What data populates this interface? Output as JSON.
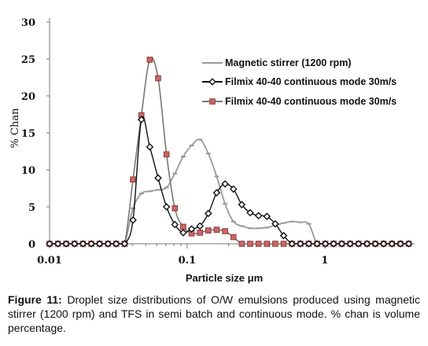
{
  "chart_data": {
    "type": "line",
    "x_scale": "log",
    "xlim": [
      0.01,
      4.5
    ],
    "ylim": [
      0,
      30
    ],
    "xlabel": "Particle size μm",
    "ylabel": "% Chan",
    "x_ticks": [
      {
        "value": 0.01,
        "label": "0.01"
      },
      {
        "value": 0.1,
        "label": "0.1"
      },
      {
        "value": 1,
        "label": "1"
      }
    ],
    "y_ticks": [
      {
        "value": 0,
        "label": "0"
      },
      {
        "value": 5,
        "label": "5"
      },
      {
        "value": 10,
        "label": "10"
      },
      {
        "value": 15,
        "label": "15"
      },
      {
        "value": 20,
        "label": "20"
      },
      {
        "value": 25,
        "label": "25"
      },
      {
        "value": 30,
        "label": "30"
      }
    ],
    "grid": false,
    "legend": "top-right",
    "series": [
      {
        "name": "Magnetic stirrer (1200 rpm)",
        "color": "#9a9a9a",
        "marker": "dash",
        "x": [
          0.01,
          0.0115,
          0.0132,
          0.0152,
          0.0175,
          0.0201,
          0.0231,
          0.0266,
          0.0305,
          0.0351,
          0.0404,
          0.0465,
          0.0535,
          0.0615,
          0.0708,
          0.0814,
          0.0936,
          0.1077,
          0.1239,
          0.1425,
          0.1639,
          0.1886,
          0.2169,
          0.2495,
          0.287,
          0.3302,
          0.3798,
          0.4369,
          0.5026,
          0.5782,
          0.6651,
          0.7651,
          0.8802,
          1.01,
          1.16,
          1.33,
          1.53,
          1.76,
          2.03,
          2.33,
          2.68,
          3.08,
          3.55,
          4.08
        ],
        "values": [
          0,
          0,
          0,
          0,
          0,
          0,
          0,
          0,
          0,
          0,
          4.8,
          6.8,
          7.1,
          7.3,
          7.6,
          9.5,
          11.8,
          13.3,
          14.1,
          12.2,
          9.1,
          5.4,
          3.0,
          2.4,
          2.1,
          2.1,
          2.2,
          2.5,
          2.8,
          3.0,
          2.9,
          2.7,
          0,
          0,
          0,
          0,
          0,
          0,
          0,
          0,
          0,
          0,
          0,
          0
        ]
      },
      {
        "name": "Filmix 40-40 continuous mode 30m/s",
        "color": "#111111",
        "marker": "diamond",
        "x": [
          0.01,
          0.0115,
          0.0132,
          0.0152,
          0.0175,
          0.0201,
          0.0231,
          0.0266,
          0.0305,
          0.0351,
          0.0404,
          0.0465,
          0.0535,
          0.0615,
          0.0708,
          0.0814,
          0.0936,
          0.1077,
          0.1239,
          0.1425,
          0.1639,
          0.1886,
          0.2169,
          0.2495,
          0.287,
          0.3302,
          0.3798,
          0.4369,
          0.5026,
          0.5782,
          0.6651,
          0.7651,
          0.8802,
          1.01,
          1.16,
          1.33,
          1.53,
          1.76,
          2.03,
          2.33,
          2.68,
          3.08,
          3.55,
          4.08
        ],
        "values": [
          0,
          0,
          0,
          0,
          0,
          0,
          0,
          0,
          0,
          0,
          3.2,
          16.8,
          13.1,
          8.9,
          5.0,
          2.6,
          1.5,
          2.0,
          2.4,
          4.1,
          6.9,
          8.1,
          7.4,
          5.3,
          4.2,
          3.8,
          3.7,
          2.7,
          1.1,
          0,
          0,
          0,
          0,
          0,
          0,
          0,
          0,
          0,
          0,
          0,
          0,
          0,
          0,
          0
        ]
      },
      {
        "name": "Filmix 40-40 continuous mode 30m/s",
        "color": "#777777",
        "marker": "square",
        "x": [
          0.01,
          0.0115,
          0.0132,
          0.0152,
          0.0175,
          0.0201,
          0.0231,
          0.0266,
          0.0305,
          0.0351,
          0.0404,
          0.0465,
          0.0535,
          0.0615,
          0.0708,
          0.0814,
          0.0936,
          0.1077,
          0.1239,
          0.1425,
          0.1639,
          0.1886,
          0.2169,
          0.2495,
          0.287,
          0.3302,
          0.3798,
          0.4369,
          0.5026,
          0.5782,
          0.6651,
          0.7651,
          0.8802,
          1.01,
          1.16,
          1.33,
          1.53,
          1.76,
          2.03,
          2.33,
          2.68,
          3.08,
          3.55,
          4.08
        ],
        "values": [
          0,
          0,
          0,
          0,
          0,
          0,
          0,
          0,
          0,
          0,
          8.7,
          17.4,
          24.9,
          22.4,
          12.1,
          4.8,
          2.3,
          1.4,
          1.5,
          1.8,
          1.9,
          1.7,
          0.9,
          0,
          0,
          0,
          0,
          0,
          0,
          0,
          0,
          0,
          0,
          0,
          0,
          0,
          0,
          0,
          0,
          0,
          0,
          0,
          0,
          0
        ]
      }
    ]
  },
  "caption": {
    "label": "Figure 11:",
    "text": " Droplet size distributions of O/W emulsions produced using magnetic stirrer (1200 rpm) and TFS in semi batch and continuous mode. % chan is volume percentage."
  }
}
